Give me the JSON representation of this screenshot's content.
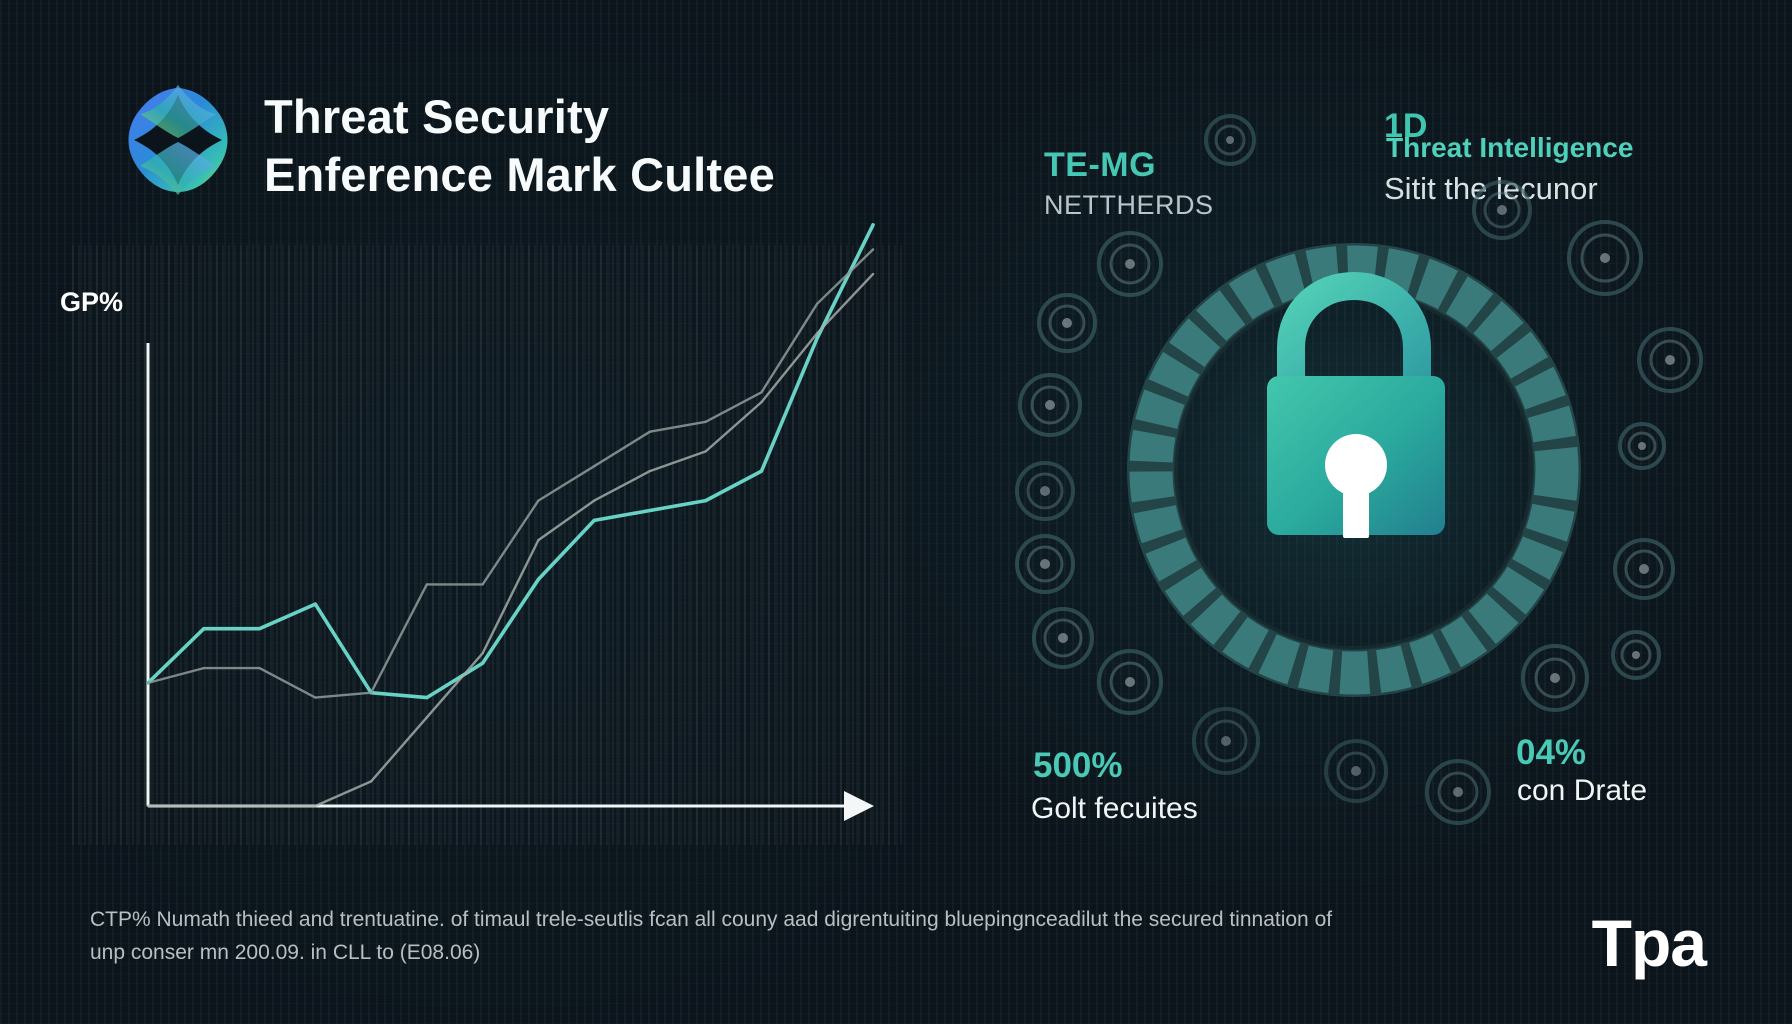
{
  "header": {
    "title_line_1": "Threat Security",
    "title_line_2": "Enference Mark Cultee",
    "logo_icon": "abstract-gradient-logo-icon"
  },
  "chart_data": {
    "type": "line",
    "title": "",
    "xlabel": "",
    "ylabel": "GP%",
    "x": [
      0,
      1,
      2,
      3,
      4,
      5,
      6,
      7,
      8,
      9,
      10,
      11,
      12,
      13
    ],
    "ylim": [
      0,
      100
    ],
    "grid": false,
    "legend": "none",
    "series": [
      {
        "values": [
          25,
          36,
          36,
          41,
          23,
          22,
          29,
          46,
          58,
          60,
          62,
          68,
          95,
          118
        ],
        "color": "#67d2c5"
      },
      {
        "values": [
          25,
          28,
          28,
          22,
          23,
          45,
          45,
          62,
          69,
          76,
          78,
          84,
          102,
          113
        ],
        "color": "#8d9b99"
      },
      {
        "values": [
          0,
          0,
          0,
          0,
          5,
          18,
          31,
          54,
          62,
          68,
          72,
          82,
          96,
          108
        ],
        "color": "#a6b1ad"
      }
    ]
  },
  "panel": {
    "left_code": "TE-MG",
    "left_subtitle": "NETTHERDS",
    "right_code": "1D",
    "right_title": "Threat Intelligence",
    "right_subtitle": "Sitit the lecunor",
    "center_icon": "padlock-icon"
  },
  "stats": [
    {
      "value": "500%",
      "label": "Golt fecuites"
    },
    {
      "value": "04%",
      "label": "con Drate"
    }
  ],
  "footer": {
    "line_1": "CTP% Numath thieed and trentuatine. of timaul trele-seutlis fcan all couny aad digrentuiting bluepingnceadilut the secured tinnation of",
    "line_2": "unp conser mn 200.09. in CLL to (E08.06)"
  },
  "brand": {
    "wordmark": "Tpa"
  },
  "colors": {
    "background": "#0b141b",
    "accent": "#49c9b6",
    "accent_dark": "#2a8f8f",
    "text": "#f7fbfb"
  }
}
